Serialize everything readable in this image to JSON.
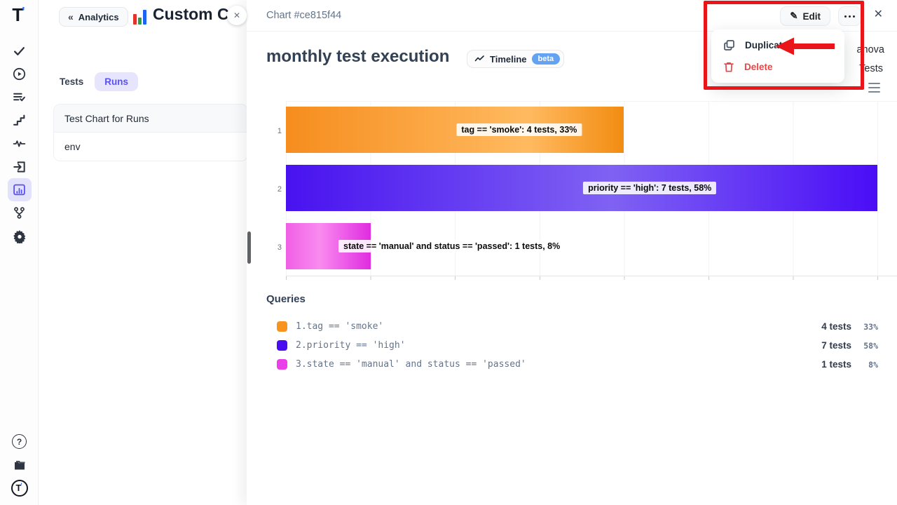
{
  "accent": {
    "indigo": "#5b51f0",
    "lavender_bg": "#e3e2fc",
    "annotation_red": "#e9151b",
    "beta_blue": "#64a2f2"
  },
  "sidebar": {
    "logo_text": "T",
    "items": [
      {
        "name": "tests",
        "icon": "check-icon"
      },
      {
        "name": "runs",
        "icon": "play-circle-icon"
      },
      {
        "name": "plans",
        "icon": "list-check-icon"
      },
      {
        "name": "milestones",
        "icon": "steps-icon"
      },
      {
        "name": "activity",
        "icon": "pulse-icon"
      },
      {
        "name": "import",
        "icon": "import-box-icon"
      },
      {
        "name": "analytics",
        "icon": "bar-chart-icon",
        "active": true
      },
      {
        "name": "branches",
        "icon": "branch-icon"
      },
      {
        "name": "settings",
        "icon": "gear-icon"
      }
    ],
    "bottom": [
      {
        "name": "help",
        "icon": "question-circle-icon",
        "glyph": "?"
      },
      {
        "name": "docs",
        "icon": "folder-icon"
      },
      {
        "name": "account",
        "icon": "t-logo-circle-icon",
        "glyph": "T"
      }
    ]
  },
  "panel": {
    "back_label": "Analytics",
    "back_chevron": "«",
    "title": "Custom C",
    "close_glyph": "✕",
    "tabs": [
      {
        "label": "Tests",
        "active": false
      },
      {
        "label": "Runs",
        "active": true
      }
    ],
    "list": [
      {
        "label": "Test Chart for Runs"
      },
      {
        "label": "env"
      }
    ]
  },
  "drawer": {
    "header": "Chart #ce815f44",
    "close_glyph": "✕",
    "edit_label": "Edit",
    "edit_glyph": "✎",
    "timeline_label": "Timeline",
    "beta_label": "beta",
    "clipped_author_fragment": "anova",
    "clipped_tests_fragment": "Tests",
    "queries_heading": "Queries"
  },
  "menu": {
    "items": [
      {
        "label": "Duplicate",
        "icon": "copy-icon",
        "danger": false
      },
      {
        "label": "Delete",
        "icon": "trash-icon",
        "danger": true
      }
    ]
  },
  "chart_data": {
    "type": "bar",
    "orientation": "horizontal",
    "title": "monthly test execution",
    "categories": [
      "1",
      "2",
      "3"
    ],
    "x_axis": {
      "visible_max": 7.23,
      "tick_interval": 1,
      "tick_labels_shown": false,
      "grid": true
    },
    "bars": [
      {
        "category": "1",
        "query": "tag == 'smoke'",
        "value": 4,
        "percent": 33,
        "label": "tag == 'smoke': 4 tests, 33%",
        "colors": [
          "#f68d1e",
          "#ffba60",
          "#f28c12"
        ],
        "light_stop": 72
      },
      {
        "category": "2",
        "query": "priority == 'high'",
        "value": 7,
        "percent": 58,
        "label": "priority == 'high': 7 tests, 58%",
        "colors": [
          "#4812f0",
          "#7f62f3",
          "#4a0df6"
        ],
        "light_stop": 55
      },
      {
        "category": "3",
        "query": "state == 'manual' and status == 'passed'",
        "value": 1,
        "percent": 8,
        "label": "state == 'manual' and status == 'passed': 1 tests, 8%",
        "colors": [
          "#f05fe5",
          "#f98bef",
          "#e02ce0"
        ],
        "light_stop": 40
      }
    ]
  },
  "queries": {
    "rows": [
      {
        "index": "1.",
        "query": "tag == 'smoke'",
        "tests": "4 tests",
        "percent": "33%",
        "color": "#f7941e"
      },
      {
        "index": "2.",
        "query": "priority == 'high'",
        "tests": "7 tests",
        "percent": "58%",
        "color": "#4a0df0"
      },
      {
        "index": "3.",
        "query": "state == 'manual' and status == 'passed'",
        "tests": "1 tests",
        "percent": "8%",
        "color": "#e940e9"
      }
    ]
  }
}
